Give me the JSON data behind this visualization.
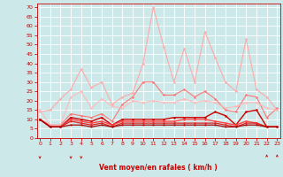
{
  "x": [
    0,
    1,
    2,
    3,
    4,
    5,
    6,
    7,
    8,
    9,
    10,
    11,
    12,
    13,
    14,
    15,
    16,
    17,
    18,
    19,
    20,
    21,
    22,
    23
  ],
  "series": [
    {
      "color": "#ffaaaa",
      "lw": 0.8,
      "marker": "o",
      "ms": 1.8,
      "values": [
        14,
        15,
        21,
        26,
        37,
        27,
        30,
        18,
        22,
        24,
        40,
        70,
        49,
        30,
        48,
        30,
        57,
        43,
        30,
        25,
        53,
        26,
        22,
        15
      ]
    },
    {
      "color": "#ff7777",
      "lw": 0.8,
      "marker": "o",
      "ms": 1.8,
      "values": [
        10,
        7,
        7,
        13,
        12,
        11,
        13,
        9,
        18,
        22,
        30,
        30,
        23,
        23,
        26,
        22,
        25,
        21,
        15,
        14,
        23,
        22,
        11,
        16
      ]
    },
    {
      "color": "#ffbbbb",
      "lw": 0.8,
      "marker": "o",
      "ms": 1.8,
      "values": [
        15,
        7,
        7,
        22,
        25,
        16,
        21,
        17,
        16,
        20,
        19,
        20,
        19,
        19,
        21,
        19,
        20,
        19,
        16,
        17,
        19,
        19,
        16,
        15
      ]
    },
    {
      "color": "#cc0000",
      "lw": 1.0,
      "marker": "o",
      "ms": 1.8,
      "values": [
        10,
        6,
        6,
        11,
        10,
        9,
        11,
        7,
        10,
        10,
        10,
        10,
        10,
        11,
        11,
        11,
        11,
        14,
        12,
        7,
        14,
        15,
        6,
        6
      ]
    },
    {
      "color": "#ff4444",
      "lw": 1.0,
      "marker": "o",
      "ms": 1.8,
      "values": [
        10,
        6,
        6,
        10,
        9,
        8,
        9,
        7,
        9,
        9,
        9,
        9,
        9,
        9,
        10,
        10,
        10,
        9,
        8,
        7,
        9,
        8,
        6,
        6
      ]
    },
    {
      "color": "#dd2222",
      "lw": 0.9,
      "marker": "o",
      "ms": 1.5,
      "values": [
        10,
        6,
        6,
        9,
        8,
        7,
        8,
        6,
        8,
        8,
        8,
        8,
        8,
        8,
        8,
        8,
        8,
        8,
        7,
        6,
        8,
        8,
        6,
        6
      ]
    },
    {
      "color": "#aa0000",
      "lw": 0.9,
      "marker": "o",
      "ms": 1.5,
      "values": [
        10,
        6,
        6,
        7,
        7,
        6,
        7,
        6,
        7,
        7,
        7,
        7,
        7,
        7,
        7,
        7,
        7,
        7,
        6,
        6,
        7,
        7,
        6,
        6
      ]
    }
  ],
  "xlim": [
    -0.3,
    23.3
  ],
  "ylim": [
    0,
    72
  ],
  "yticks": [
    0,
    5,
    10,
    15,
    20,
    25,
    30,
    35,
    40,
    45,
    50,
    55,
    60,
    65,
    70
  ],
  "xticks": [
    0,
    1,
    2,
    3,
    4,
    5,
    6,
    7,
    8,
    9,
    10,
    11,
    12,
    13,
    14,
    15,
    16,
    17,
    18,
    19,
    20,
    21,
    22,
    23
  ],
  "xlabel": "Vent moyen/en rafales ( km/h )",
  "bg_color": "#cce8e8",
  "grid_color": "#ffffff",
  "tick_color": "#cc0000",
  "label_color": "#cc0000",
  "arrow_angles": [
    225,
    90,
    90,
    135,
    135,
    90,
    90,
    90,
    90,
    90,
    90,
    90,
    90,
    90,
    90,
    90,
    90,
    90,
    90,
    90,
    90,
    90,
    45,
    315
  ]
}
